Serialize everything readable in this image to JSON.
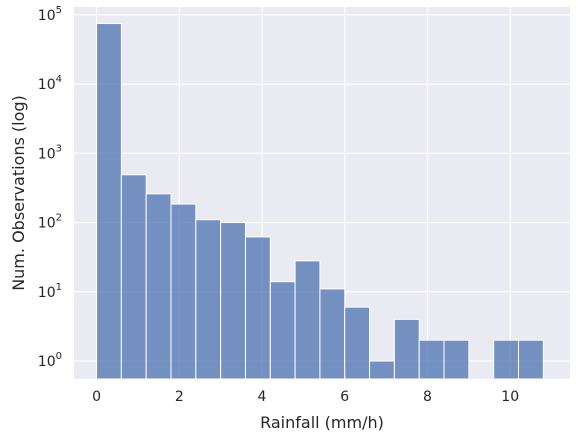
{
  "chart_data": {
    "type": "bar",
    "title": "",
    "xlabel": "Rainfall (mm/h)",
    "ylabel": "Num. Observations (log)",
    "y_scale": "log",
    "ylim": [
      0.55,
      130000
    ],
    "xlim": [
      -0.545,
      11.445
    ],
    "grid": true,
    "background": "#eaeaf2",
    "bar_color": "#4c72b0",
    "bar_opacity": 0.75,
    "x_ticks": [
      0,
      2,
      4,
      6,
      8,
      10
    ],
    "x_tick_labels": [
      "0",
      "2",
      "4",
      "6",
      "8",
      "10"
    ],
    "y_ticks": [
      1,
      10,
      100,
      1000,
      10000,
      100000
    ],
    "y_tick_labels": [
      {
        "base": "10",
        "exp": "0"
      },
      {
        "base": "10",
        "exp": "1"
      },
      {
        "base": "10",
        "exp": "2"
      },
      {
        "base": "10",
        "exp": "3"
      },
      {
        "base": "10",
        "exp": "4"
      },
      {
        "base": "10",
        "exp": "5"
      }
    ],
    "bin_width": 0.6,
    "bins": [
      {
        "x0": 0.0,
        "x1": 0.6,
        "count": 75000
      },
      {
        "x0": 0.6,
        "x1": 1.2,
        "count": 490
      },
      {
        "x0": 1.2,
        "x1": 1.8,
        "count": 260
      },
      {
        "x0": 1.8,
        "x1": 2.4,
        "count": 185
      },
      {
        "x0": 2.4,
        "x1": 3.0,
        "count": 110
      },
      {
        "x0": 3.0,
        "x1": 3.6,
        "count": 100
      },
      {
        "x0": 3.6,
        "x1": 4.2,
        "count": 62
      },
      {
        "x0": 4.2,
        "x1": 4.8,
        "count": 14
      },
      {
        "x0": 4.8,
        "x1": 5.4,
        "count": 28
      },
      {
        "x0": 5.4,
        "x1": 6.0,
        "count": 11
      },
      {
        "x0": 6.0,
        "x1": 6.6,
        "count": 6
      },
      {
        "x0": 6.6,
        "x1": 7.2,
        "count": 1
      },
      {
        "x0": 7.2,
        "x1": 7.8,
        "count": 4
      },
      {
        "x0": 7.8,
        "x1": 8.4,
        "count": 2
      },
      {
        "x0": 8.4,
        "x1": 9.0,
        "count": 2
      },
      {
        "x0": 9.0,
        "x1": 9.6,
        "count": 0
      },
      {
        "x0": 9.6,
        "x1": 10.2,
        "count": 2
      },
      {
        "x0": 10.2,
        "x1": 10.8,
        "count": 2
      }
    ]
  }
}
